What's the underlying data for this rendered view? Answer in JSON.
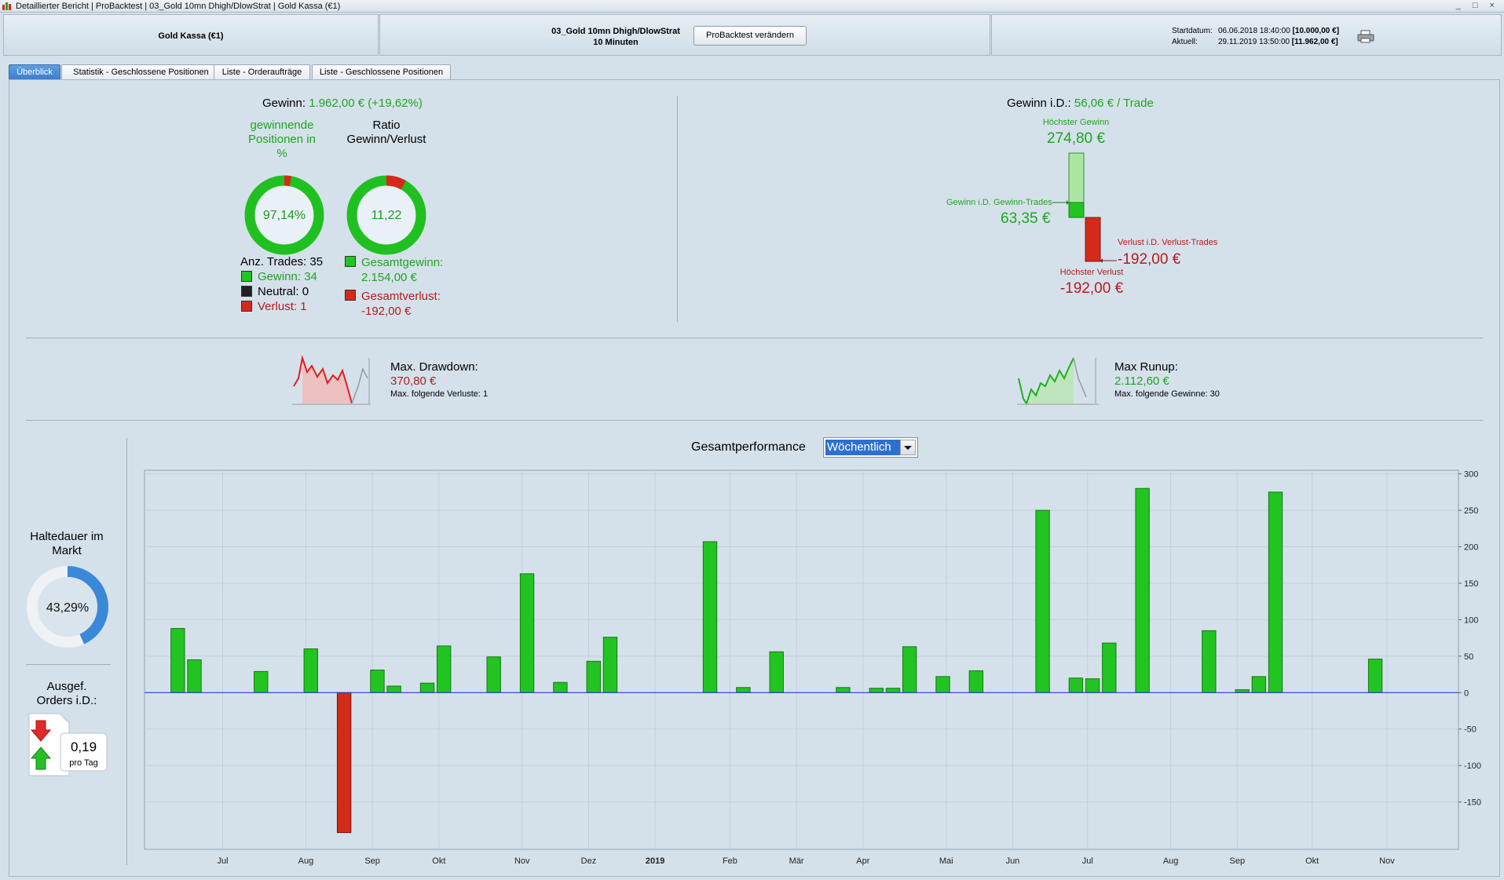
{
  "window": {
    "title": "Detaillierter Bericht | ProBacktest | 03_Gold 10mn Dhigh/DlowStrat | Gold Kassa (€1)",
    "controls": "_ □ ×"
  },
  "header": {
    "instrument": "Gold Kassa (€1)",
    "strategy": "03_Gold 10mn Dhigh/DlowStrat",
    "timeframe": "10 Minuten",
    "change_button": "ProBacktest verändern",
    "start_label": "Startdatum:",
    "start_value": "06.06.2018 18:40:00",
    "start_capital": "[10.000,00 €]",
    "current_label": "Aktuell:",
    "current_value": "29.11.2019 13:50:00",
    "current_capital": "[11.962,00 €]"
  },
  "tabs": [
    "Überblick",
    "Statistik - Geschlossene Positionen",
    "Liste - Orderaufträge",
    "Liste - Geschlossene Positionen"
  ],
  "overview": {
    "gain_label": "Gewinn:",
    "gain_value": "1.962,00 € (+19,62%)",
    "win_pct_title_1": "gewinnende",
    "win_pct_title_2": "Positionen in",
    "win_pct_title_3": "%",
    "win_pct_value": "97,14%",
    "win_pct_fraction": 0.9714,
    "ratio_title_1": "Ratio",
    "ratio_title_2": "Gewinn/Verlust",
    "ratio_value": "11,22",
    "ratio_fraction": 0.918,
    "trades_label": "Anz. Trades: 35",
    "win_trades": "Gewinn: 34",
    "neutral_trades": "Neutral: 0",
    "loss_trades": "Verlust: 1",
    "total_gain_label": "Gesamtgewinn:",
    "total_gain_value": "2.154,00 €",
    "total_loss_label": "Gesamtverlust:",
    "total_loss_value": "-192,00 €"
  },
  "per_trade": {
    "label": "Gewinn i.D.:",
    "value": "56,06 € / Trade",
    "max_gain_label": "Höchster Gewinn",
    "max_gain_value": "274,80 €",
    "avg_gain_label": "Gewinn i.D. Gewinn-Trades",
    "avg_gain_value": "63,35 €",
    "avg_loss_label": "Verlust i.D. Verlust-Trades",
    "avg_loss_value": "-192,00 €",
    "max_loss_label": "Höchster Verlust",
    "max_loss_value": "-192,00 €"
  },
  "drawdown": {
    "label": "Max. Drawdown:",
    "value": "370,80 €",
    "sub": "Max. folgende Verluste: 1"
  },
  "runup": {
    "label": "Max Runup:",
    "value": "2.112,60 €",
    "sub": "Max. folgende Gewinne: 30"
  },
  "holding": {
    "title_1": "Haltedauer im",
    "title_2": "Markt",
    "value": "43,29%",
    "fraction": 0.4329
  },
  "orders": {
    "title_1": "Ausgef.",
    "title_2": "Orders i.D.:",
    "value": "0,19",
    "unit": "pro Tag"
  },
  "performance": {
    "title": "Gesamtperformance",
    "period": "Wöchentlich"
  },
  "chart_data": {
    "type": "bar",
    "title": "Gesamtperformance",
    "ylim": [
      -215,
      305
    ],
    "y_ticks": [
      300,
      250,
      200,
      150,
      100,
      50,
      0,
      -50,
      -100,
      -150
    ],
    "x_labels": [
      "Jul",
      "Aug",
      "Sep",
      "Okt",
      "Nov",
      "Dez",
      "2019",
      "Feb",
      "Mär",
      "Apr",
      "Mai",
      "Jun",
      "Jul",
      "Aug",
      "Sep",
      "Okt",
      "Nov"
    ],
    "x_label_weeks": [
      4.7,
      9.7,
      13.7,
      17.7,
      22.7,
      26.7,
      30.7,
      35.2,
      39.2,
      43.2,
      48.2,
      52.2,
      56.7,
      61.7,
      65.7,
      70.2,
      74.7
    ],
    "weeks": [
      2,
      3,
      7,
      10,
      12,
      14,
      15,
      17,
      18,
      21,
      23,
      25,
      27,
      28,
      34,
      36,
      38,
      42,
      44,
      45,
      46,
      48,
      50,
      54,
      56,
      57,
      58,
      60,
      64,
      66,
      67,
      68,
      74,
      75
    ],
    "values": [
      88,
      45,
      29,
      60,
      -192,
      31,
      9,
      13,
      64,
      49,
      163,
      14,
      43,
      76,
      207,
      7,
      56,
      7,
      6,
      6,
      63,
      22,
      30,
      250,
      20,
      19,
      68,
      280,
      85,
      4,
      22,
      275,
      46,
      0
    ],
    "colors": {
      "gain": "#22c422",
      "loss": "#d42a1a",
      "zero_line": "#2b3fd0"
    }
  }
}
